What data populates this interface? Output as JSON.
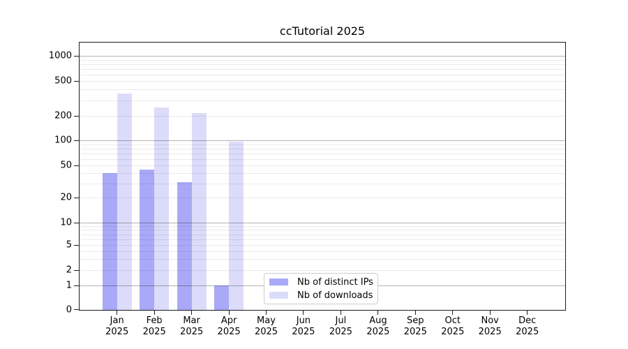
{
  "chart_data": {
    "type": "bar",
    "title": "ccTutorial 2025",
    "categories": [
      "Jan 2025",
      "Feb 2025",
      "Mar 2025",
      "Apr 2025",
      "May 2025",
      "Jun 2025",
      "Jul 2025",
      "Aug 2025",
      "Sep 2025",
      "Oct 2025",
      "Nov 2025",
      "Dec 2025"
    ],
    "series": [
      {
        "name": "Nb of distinct IPs",
        "color": "#a9a9f7",
        "values": [
          40,
          44,
          31,
          1,
          0,
          0,
          0,
          0,
          0,
          0,
          0,
          0
        ]
      },
      {
        "name": "Nb of downloads",
        "color": "#dcdcfa",
        "values": [
          360,
          250,
          215,
          97,
          0,
          0,
          0,
          0,
          0,
          0,
          0,
          0
        ]
      }
    ],
    "y_axis": {
      "tick_values": [
        0,
        1,
        2,
        5,
        10,
        20,
        50,
        100,
        200,
        500,
        1000
      ],
      "tick_labels": [
        "0",
        "1",
        "2",
        "5",
        "10",
        "20",
        "50",
        "100",
        "200",
        "500",
        "1000"
      ],
      "scale": "log-like with zero baseline",
      "ylim": [
        0,
        1000
      ]
    },
    "x_axis": {
      "tick_labels": [
        "Jan",
        "Feb",
        "Mar",
        "Apr",
        "May",
        "Jun",
        "Jul",
        "Aug",
        "Sep",
        "Oct",
        "Nov",
        "Dec"
      ],
      "year_line": "2025"
    },
    "legend": {
      "position": "inside bottom-center"
    },
    "grid": {
      "horizontal": true,
      "minor_lines": true,
      "major_color": "#b3b3b3",
      "minor_color": "#ececec"
    }
  }
}
